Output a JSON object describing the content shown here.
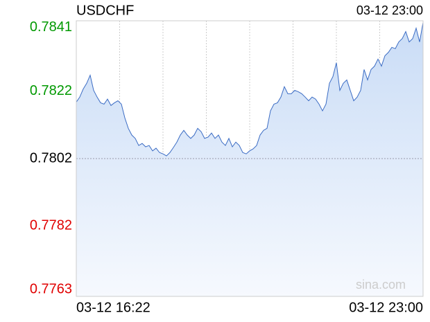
{
  "chart_data": {
    "type": "line",
    "title": "USDCHF",
    "timestamp": "03-12 23:00",
    "x_labels": [
      "03-12 16:22",
      "03-12 23:00"
    ],
    "values": [
      0.78188,
      0.78203,
      0.78227,
      0.78244,
      0.78268,
      0.78223,
      0.78203,
      0.78186,
      0.78182,
      0.78197,
      0.78178,
      0.78186,
      0.78192,
      0.78182,
      0.78141,
      0.7811,
      0.7809,
      0.7808,
      0.78059,
      0.78065,
      0.78055,
      0.78059,
      0.78043,
      0.78051,
      0.78038,
      0.78034,
      0.78028,
      0.78038,
      0.78053,
      0.78069,
      0.7809,
      0.78104,
      0.7809,
      0.7808,
      0.7809,
      0.7811,
      0.781,
      0.7808,
      0.78084,
      0.78096,
      0.7808,
      0.7809,
      0.78069,
      0.78059,
      0.7808,
      0.78055,
      0.78069,
      0.78059,
      0.78038,
      0.78034,
      0.78043,
      0.78049,
      0.78059,
      0.7809,
      0.78104,
      0.7811,
      0.78162,
      0.78182,
      0.78186,
      0.78203,
      0.78234,
      0.78213,
      0.78213,
      0.78223,
      0.78219,
      0.78213,
      0.78203,
      0.78192,
      0.78203,
      0.78197,
      0.78182,
      0.78162,
      0.78182,
      0.78244,
      0.78264,
      0.78305,
      0.78223,
      0.78244,
      0.78254,
      0.78223,
      0.78192,
      0.78203,
      0.78223,
      0.78285,
      0.78254,
      0.78285,
      0.78295,
      0.78316,
      0.78295,
      0.78326,
      0.78336,
      0.78351,
      0.78347,
      0.78367,
      0.78377,
      0.78398,
      0.78367,
      0.78377,
      0.78408,
      0.78367,
      0.78425
    ],
    "color": "#3b6cc4",
    "ylim": [
      0.7761,
      0.7843
    ],
    "yticks": [
      0.7763,
      0.7782,
      0.7802,
      0.7822,
      0.7841
    ],
    "reference_line": 0.7802,
    "up_color": "#009900",
    "down_color": "#e00000",
    "flat_color": "#000000",
    "x_grid_divisions": 8,
    "watermark": "sina.com"
  }
}
